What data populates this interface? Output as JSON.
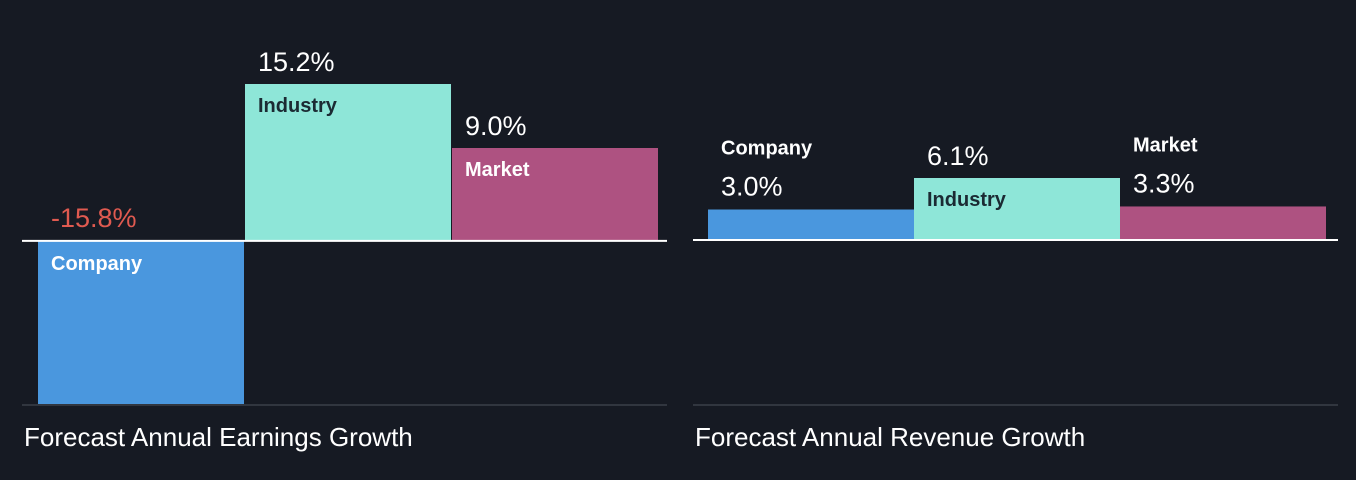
{
  "colors": {
    "background": "#161a23",
    "company": "#4a97de",
    "industry": "#8ee6d8",
    "market": "#ae5281",
    "negative_value": "#e05a50",
    "positive_value": "#ffffff",
    "axis": "#ffffff",
    "baseline": "#3a3f49"
  },
  "chart_data": [
    {
      "type": "bar",
      "title": "Forecast Annual Earnings Growth",
      "categories": [
        "Company",
        "Industry",
        "Market"
      ],
      "values": [
        -15.8,
        15.2,
        9.0
      ],
      "value_labels": [
        "-15.8%",
        "15.2%",
        "9.0%"
      ],
      "unit": "%",
      "ylim": [
        -15.8,
        15.2
      ],
      "grid": false,
      "legend": "none"
    },
    {
      "type": "bar",
      "title": "Forecast Annual Revenue Growth",
      "categories": [
        "Company",
        "Industry",
        "Market"
      ],
      "values": [
        3.0,
        6.1,
        3.3
      ],
      "value_labels": [
        "3.0%",
        "6.1%",
        "3.3%"
      ],
      "unit": "%",
      "ylim": [
        0,
        6.1
      ],
      "grid": false,
      "legend": "none"
    }
  ]
}
